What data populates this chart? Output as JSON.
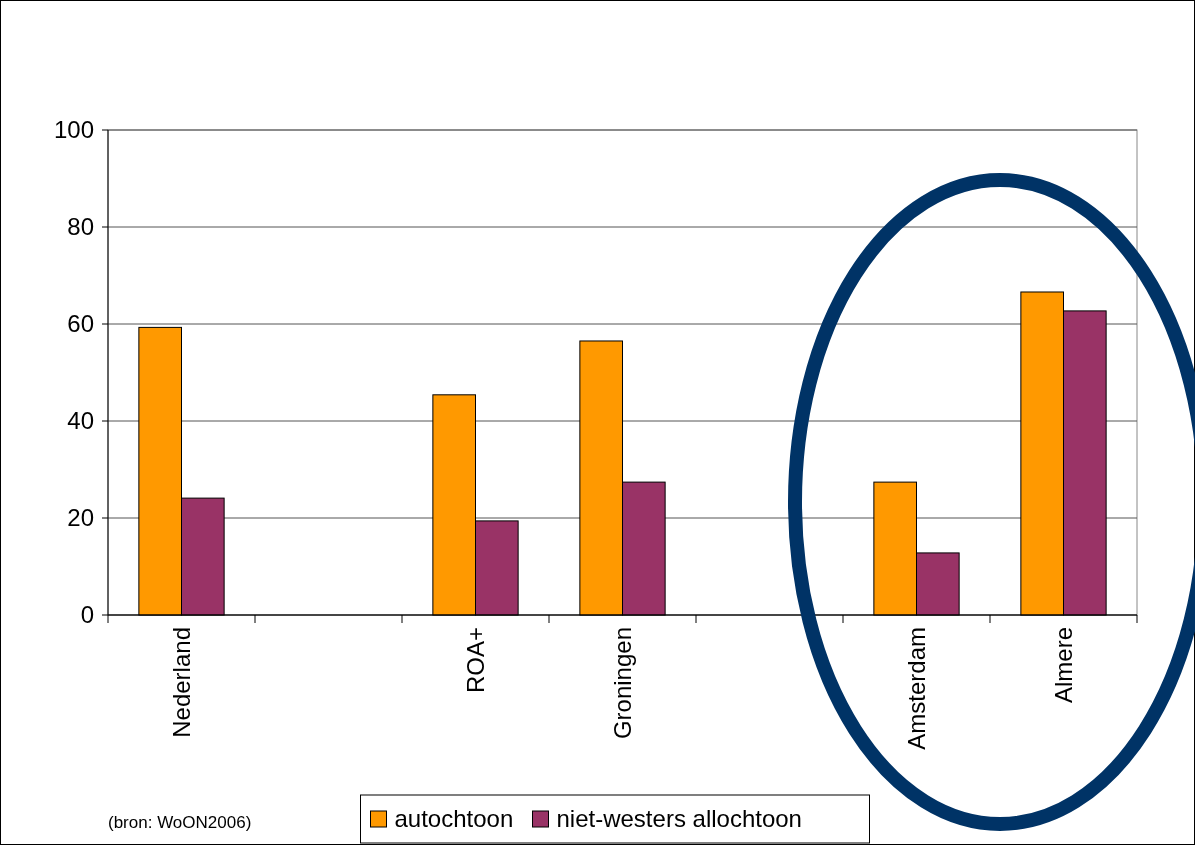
{
  "chart_data": {
    "type": "bar",
    "categories": [
      "Nederland",
      null,
      "ROA+",
      "Groningen",
      null,
      "Amsterdam",
      "Almere"
    ],
    "series": [
      {
        "name": "autochtoon",
        "color": "#ff9900",
        "values": [
          59.3,
          null,
          45.4,
          56.5,
          null,
          27.4,
          66.6
        ]
      },
      {
        "name": "niet-westers allochtoon",
        "color": "#993366",
        "values": [
          24.1,
          null,
          19.4,
          27.4,
          null,
          12.8,
          62.7
        ]
      }
    ],
    "ylim": [
      0,
      100
    ],
    "yticks": [
      0,
      20,
      40,
      60,
      80,
      100
    ],
    "grid": "y",
    "legend": "bottom",
    "annotations": [
      "(bron: WoON2006)"
    ]
  }
}
